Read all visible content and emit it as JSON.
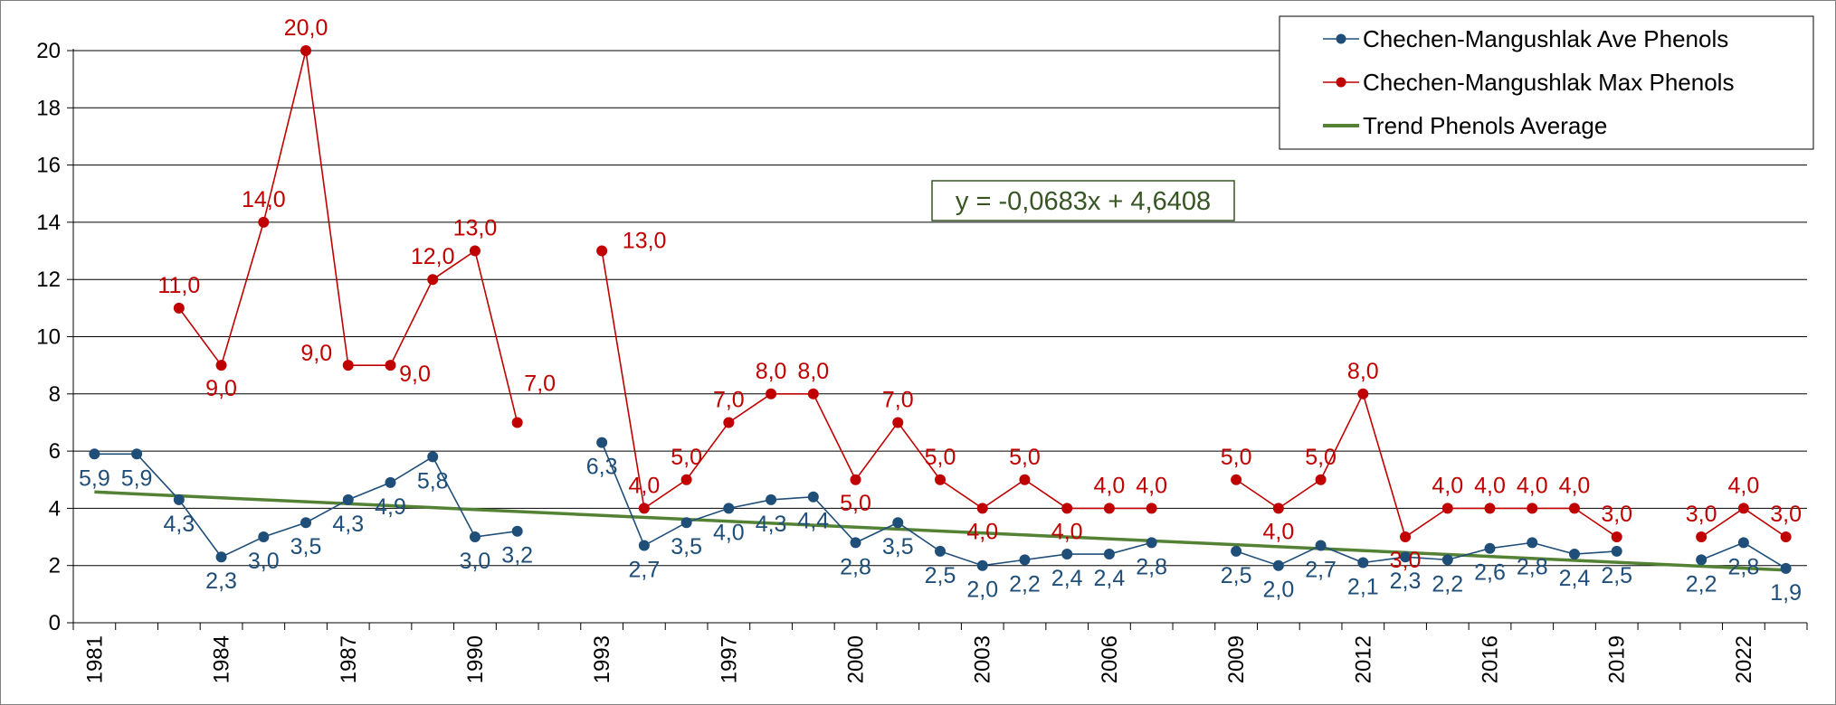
{
  "chart_data": {
    "type": "line",
    "ylim": [
      0,
      20
    ],
    "y_ticks": [
      "0",
      "2",
      "4",
      "6",
      "8",
      "10",
      "12",
      "14",
      "16",
      "18",
      "20"
    ],
    "grid": "horizontal",
    "legend_position": "top-right",
    "x_ticks": [
      "1981",
      "1984",
      "1987",
      "1990",
      "1993",
      "1997",
      "2000",
      "2003",
      "2006",
      "2009",
      "2012",
      "2016",
      "2019",
      "2022"
    ],
    "series": [
      {
        "name": "Chechen-Mangushlak Ave Phenols",
        "color": "#1f4e79",
        "points": [
          {
            "i": 0,
            "y": 5.9,
            "label": "5,9"
          },
          {
            "i": 1,
            "y": 5.9,
            "label": "5,9"
          },
          {
            "i": 2,
            "y": 4.3,
            "label": "4,3"
          },
          {
            "i": 3,
            "y": 2.3,
            "label": "2,3"
          },
          {
            "i": 4,
            "y": 3.0,
            "label": "3,0"
          },
          {
            "i": 5,
            "y": 3.5,
            "label": "3,5"
          },
          {
            "i": 6,
            "y": 4.3,
            "label": "4,3"
          },
          {
            "i": 7,
            "y": 4.9,
            "label": "4,9"
          },
          {
            "i": 8,
            "y": 5.8,
            "label": "5,8"
          },
          {
            "i": 9,
            "y": 3.0,
            "label": "3,0"
          },
          {
            "i": 10,
            "y": 3.2,
            "label": "3,2"
          },
          {
            "i": 12,
            "y": 6.3,
            "label": "6,3"
          },
          {
            "i": 13,
            "y": 2.7,
            "label": "2,7"
          },
          {
            "i": 14,
            "y": 3.5,
            "label": "3,5"
          },
          {
            "i": 15,
            "y": 4.0,
            "label": "4,0"
          },
          {
            "i": 16,
            "y": 4.3,
            "label": "4,3"
          },
          {
            "i": 17,
            "y": 4.4,
            "label": "4,4"
          },
          {
            "i": 18,
            "y": 2.8,
            "label": "2,8"
          },
          {
            "i": 19,
            "y": 3.5,
            "label": "3,5"
          },
          {
            "i": 20,
            "y": 2.5,
            "label": "2,5"
          },
          {
            "i": 21,
            "y": 2.0,
            "label": "2,0"
          },
          {
            "i": 22,
            "y": 2.2,
            "label": "2,2"
          },
          {
            "i": 23,
            "y": 2.4,
            "label": "2,4"
          },
          {
            "i": 24,
            "y": 2.4,
            "label": "2,4"
          },
          {
            "i": 25,
            "y": 2.8,
            "label": "2,8"
          },
          {
            "i": 27,
            "y": 2.5,
            "label": "2,5"
          },
          {
            "i": 28,
            "y": 2.0,
            "label": "2,0"
          },
          {
            "i": 29,
            "y": 2.7,
            "label": "2,7"
          },
          {
            "i": 30,
            "y": 2.1,
            "label": "2,1"
          },
          {
            "i": 31,
            "y": 2.3,
            "label": "2,3"
          },
          {
            "i": 32,
            "y": 2.2,
            "label": "2,2"
          },
          {
            "i": 33,
            "y": 2.6,
            "label": "2,6"
          },
          {
            "i": 34,
            "y": 2.8,
            "label": "2,8"
          },
          {
            "i": 35,
            "y": 2.4,
            "label": "2,4"
          },
          {
            "i": 36,
            "y": 2.5,
            "label": "2,5"
          },
          {
            "i": 38,
            "y": 2.2,
            "label": "2,2"
          },
          {
            "i": 39,
            "y": 2.8,
            "label": "2,8"
          },
          {
            "i": 40,
            "y": 1.9,
            "label": "1,9"
          }
        ]
      },
      {
        "name": "Chechen-Mangushlak Max Phenols",
        "color": "#c00000",
        "points": [
          {
            "i": 2,
            "y": 11.0,
            "label": "11,0"
          },
          {
            "i": 3,
            "y": 9.0,
            "label": "9,0"
          },
          {
            "i": 4,
            "y": 14.0,
            "label": "14,0"
          },
          {
            "i": 5,
            "y": 20.0,
            "label": "20,0"
          },
          {
            "i": 6,
            "y": 9.0,
            "label": "9,0"
          },
          {
            "i": 7,
            "y": 9.0,
            "label": "9,0"
          },
          {
            "i": 8,
            "y": 12.0,
            "label": "12,0"
          },
          {
            "i": 9,
            "y": 13.0,
            "label": "13,0"
          },
          {
            "i": 10,
            "y": 7.0,
            "label": "7,0"
          },
          {
            "i": 12,
            "y": 13.0,
            "label": "13,0"
          },
          {
            "i": 13,
            "y": 4.0,
            "label": "4,0"
          },
          {
            "i": 14,
            "y": 5.0,
            "label": "5,0"
          },
          {
            "i": 15,
            "y": 7.0,
            "label": "7,0"
          },
          {
            "i": 16,
            "y": 8.0,
            "label": "8,0"
          },
          {
            "i": 17,
            "y": 8.0,
            "label": "8,0"
          },
          {
            "i": 18,
            "y": 5.0,
            "label": "5,0"
          },
          {
            "i": 19,
            "y": 7.0,
            "label": "7,0"
          },
          {
            "i": 20,
            "y": 5.0,
            "label": "5,0"
          },
          {
            "i": 21,
            "y": 4.0,
            "label": "4,0"
          },
          {
            "i": 22,
            "y": 5.0,
            "label": "5,0"
          },
          {
            "i": 23,
            "y": 4.0,
            "label": "4,0"
          },
          {
            "i": 24,
            "y": 4.0,
            "label": "4,0"
          },
          {
            "i": 25,
            "y": 4.0,
            "label": "4,0"
          },
          {
            "i": 27,
            "y": 5.0,
            "label": "5,0"
          },
          {
            "i": 28,
            "y": 4.0,
            "label": "4,0"
          },
          {
            "i": 29,
            "y": 5.0,
            "label": "5,0"
          },
          {
            "i": 30,
            "y": 8.0,
            "label": "8,0"
          },
          {
            "i": 31,
            "y": 3.0,
            "label": "3,0"
          },
          {
            "i": 32,
            "y": 4.0,
            "label": "4,0"
          },
          {
            "i": 33,
            "y": 4.0,
            "label": "4,0"
          },
          {
            "i": 34,
            "y": 4.0,
            "label": "4,0"
          },
          {
            "i": 35,
            "y": 4.0,
            "label": "4,0"
          },
          {
            "i": 36,
            "y": 3.0,
            "label": "3,0"
          },
          {
            "i": 38,
            "y": 3.0,
            "label": "3,0"
          },
          {
            "i": 39,
            "y": 4.0,
            "label": "4,0"
          },
          {
            "i": 40,
            "y": 3.0,
            "label": "3,0"
          }
        ]
      }
    ],
    "trend": {
      "name": "Trend Phenols Average",
      "color": "#548235",
      "equation": "y = -0,0683x + 4,6408",
      "start": {
        "i": 0,
        "y": 4.5725
      },
      "end": {
        "i": 40,
        "y": 1.8405
      }
    }
  }
}
